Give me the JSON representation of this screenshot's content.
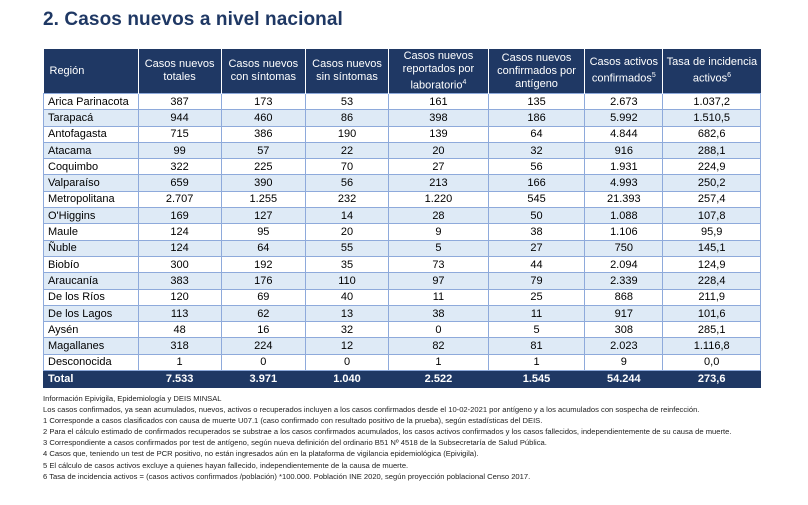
{
  "title": "2. Casos nuevos a nivel nacional",
  "table": {
    "headers": [
      {
        "text": "Región",
        "sup": ""
      },
      {
        "text": "Casos nuevos totales",
        "sup": ""
      },
      {
        "text": "Casos nuevos con síntomas",
        "sup": ""
      },
      {
        "text": "Casos nuevos sin síntomas",
        "sup": ""
      },
      {
        "text": "Casos nuevos reportados por laboratorio",
        "sup": "4"
      },
      {
        "text": "Casos nuevos confirmados por antígeno",
        "sup": ""
      },
      {
        "text": "Casos activos confirmados",
        "sup": "5"
      },
      {
        "text": "Tasa de incidencia activos",
        "sup": "6"
      }
    ],
    "rows": [
      [
        "Arica Parinacota",
        "387",
        "173",
        "53",
        "161",
        "135",
        "2.673",
        "1.037,2"
      ],
      [
        "Tarapacá",
        "944",
        "460",
        "86",
        "398",
        "186",
        "5.992",
        "1.510,5"
      ],
      [
        "Antofagasta",
        "715",
        "386",
        "190",
        "139",
        "64",
        "4.844",
        "682,6"
      ],
      [
        "Atacama",
        "99",
        "57",
        "22",
        "20",
        "32",
        "916",
        "288,1"
      ],
      [
        "Coquimbo",
        "322",
        "225",
        "70",
        "27",
        "56",
        "1.931",
        "224,9"
      ],
      [
        "Valparaíso",
        "659",
        "390",
        "56",
        "213",
        "166",
        "4.993",
        "250,2"
      ],
      [
        "Metropolitana",
        "2.707",
        "1.255",
        "232",
        "1.220",
        "545",
        "21.393",
        "257,4"
      ],
      [
        "O'Higgins",
        "169",
        "127",
        "14",
        "28",
        "50",
        "1.088",
        "107,8"
      ],
      [
        "Maule",
        "124",
        "95",
        "20",
        "9",
        "38",
        "1.106",
        "95,9"
      ],
      [
        "Ñuble",
        "124",
        "64",
        "55",
        "5",
        "27",
        "750",
        "145,1"
      ],
      [
        "Biobío",
        "300",
        "192",
        "35",
        "73",
        "44",
        "2.094",
        "124,9"
      ],
      [
        "Araucanía",
        "383",
        "176",
        "110",
        "97",
        "79",
        "2.339",
        "228,4"
      ],
      [
        "De los Ríos",
        "120",
        "69",
        "40",
        "11",
        "25",
        "868",
        "211,9"
      ],
      [
        "De los Lagos",
        "113",
        "62",
        "13",
        "38",
        "11",
        "917",
        "101,6"
      ],
      [
        "Aysén",
        "48",
        "16",
        "32",
        "0",
        "5",
        "308",
        "285,1"
      ],
      [
        "Magallanes",
        "318",
        "224",
        "12",
        "82",
        "81",
        "2.023",
        "1.116,8"
      ],
      [
        "Desconocida",
        "1",
        "0",
        "0",
        "1",
        "1",
        "9",
        "0,0"
      ]
    ],
    "total": [
      "Total",
      "7.533",
      "3.971",
      "1.040",
      "2.522",
      "1.545",
      "54.244",
      "273,6"
    ]
  },
  "notes": [
    "Información Epivigila, Epidemiología y DEIS MINSAL",
    "Los casos confirmados, ya sean acumulados, nuevos, activos o recuperados incluyen a los casos confirmados desde el 10-02-2021 por antígeno y a los acumulados con sospecha de reinfección.",
    "1 Corresponde a casos clasificados con causa de muerte U07.1 (caso confirmado con resultado positivo de la prueba), según estadísticas del DEIS.",
    "2 Para el cálculo estimado de confirmados recuperados se substrae a los casos confirmados acumulados, los casos activos confirmados y los casos fallecidos, independientemente de su causa de muerte.",
    "3 Correspondiente a casos confirmados por test de antígeno, según nueva definición del ordinario B51 Nº 4518 de la Subsecretaría de Salud Pública.",
    "4 Casos que, teniendo un test de PCR positivo, no están ingresados aún en la plataforma de vigilancia epidemiológica (Epivigila).",
    "5 El cálculo de casos activos excluye a quienes hayan fallecido, independientemente de la causa de muerte.",
    "6 Tasa de incidencia activos = (casos activos confirmados /población) *100.000. Población INE 2020, según proyección poblacional Censo 2017."
  ]
}
